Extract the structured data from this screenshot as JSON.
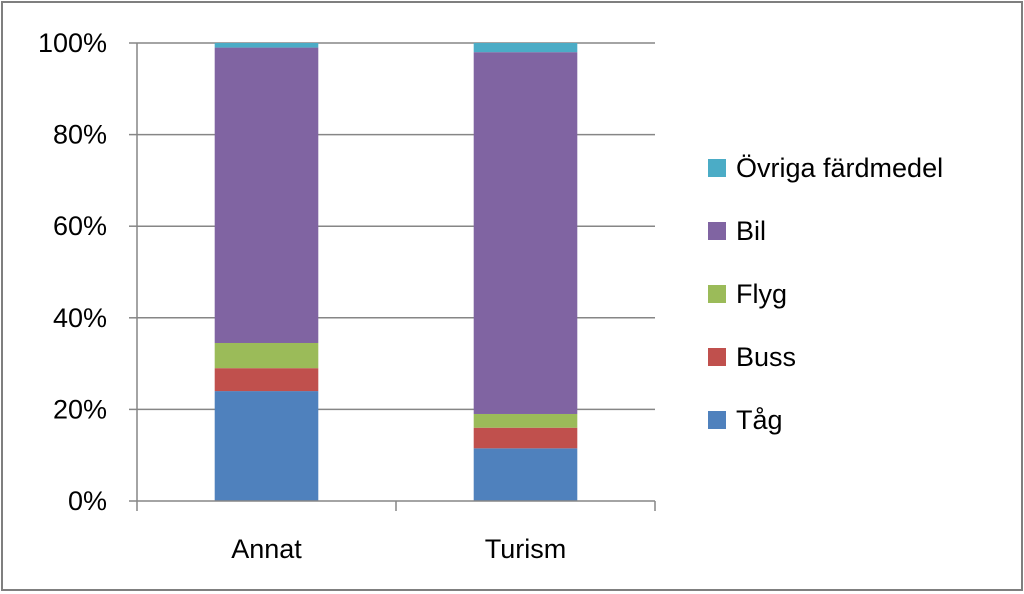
{
  "chart_data": {
    "type": "bar",
    "stacked": true,
    "percent_stacked": true,
    "categories": [
      "Annat",
      "Turism"
    ],
    "series": [
      {
        "name": "Tåg",
        "color": "#4f81bd",
        "values": [
          24,
          11.5
        ]
      },
      {
        "name": "Buss",
        "color": "#c0504d",
        "values": [
          5,
          4.5
        ]
      },
      {
        "name": "Flyg",
        "color": "#9bbb59",
        "values": [
          5.5,
          3
        ]
      },
      {
        "name": "Bil",
        "color": "#8064a2",
        "values": [
          64.5,
          79
        ]
      },
      {
        "name": "Övriga färdmedel",
        "color": "#4bacc6",
        "values": [
          1,
          2
        ]
      }
    ],
    "ylim": [
      0,
      100
    ],
    "yticks": [
      "0%",
      "20%",
      "40%",
      "60%",
      "80%",
      "100%"
    ],
    "grid": true,
    "legend": "right",
    "legend_order": [
      "Övriga färdmedel",
      "Bil",
      "Flyg",
      "Buss",
      "Tåg"
    ],
    "gridline_color": "#868686"
  }
}
